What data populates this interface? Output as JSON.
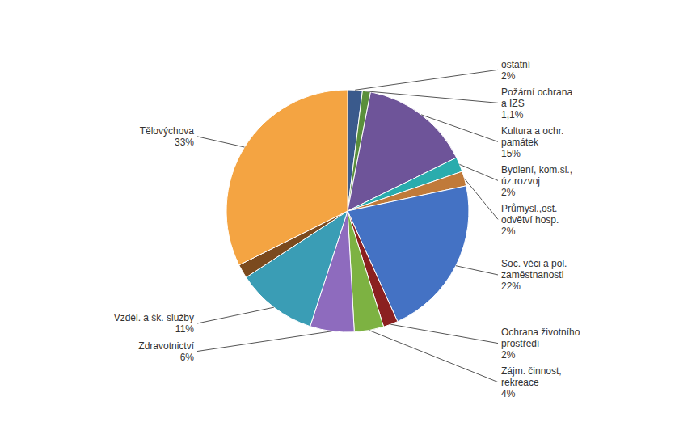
{
  "chart_data": {
    "type": "pie",
    "categories": [
      "ostatní",
      "Požární ochrana\na IZS",
      "Kultura a ochr.\npamátek",
      "Bydlení, kom.sl.,\núz.rozvoj",
      "Průmysl.,ost.\nodvětví hosp.",
      "Soc. věci a pol.\nzaměstnanosti",
      "Ochrana životního\nprostředí",
      "Zájm. činnost,\nrekreace",
      "Zdravotnictví",
      "Vzděl. a šk. služby",
      null,
      "Tělovýchova"
    ],
    "values": [
      2.0,
      1.1,
      15.0,
      2.0,
      2.0,
      22.0,
      2.0,
      4.0,
      6.0,
      11.0,
      1.9,
      33.0
    ],
    "value_labels": [
      "2%",
      "1,1%",
      "15%",
      "2%",
      "2%",
      "22%",
      "2%",
      "4%",
      "6%",
      "11%",
      null,
      "33%"
    ],
    "colors": [
      "#3A5A8C",
      "#5A8F3C",
      "#6E5499",
      "#2AACAD",
      "#C07A3A",
      "#4472C4",
      "#8B2020",
      "#7DB242",
      "#8E6BBE",
      "#3A9DB5",
      "#7B4A1E",
      "#F4A442"
    ],
    "data_labels": true
  }
}
